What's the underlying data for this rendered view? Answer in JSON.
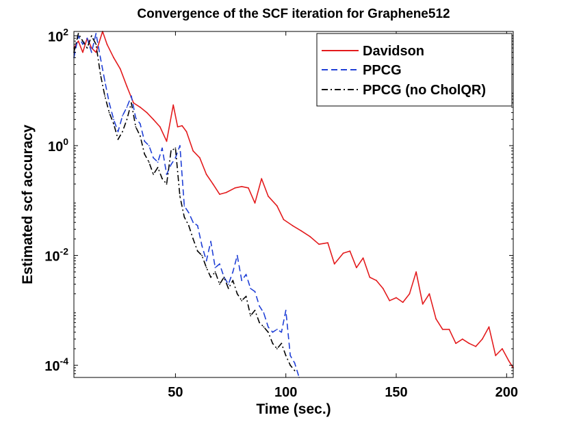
{
  "chart_data": {
    "type": "line",
    "title": "Convergence of the SCF iteration for Graphene512",
    "xlabel": "Time (sec.)",
    "ylabel": "Estimated scf accuracy",
    "xlim": [
      4,
      203
    ],
    "ylim": [
      6e-05,
      120
    ],
    "yscale": "log",
    "xticks": [
      50,
      100,
      150,
      200
    ],
    "xtick_labels": [
      "50",
      "100",
      "150",
      "200"
    ],
    "yticks": [
      {
        "value": 100,
        "base": "10",
        "exp": "2"
      },
      {
        "value": 1,
        "base": "10",
        "exp": "0"
      },
      {
        "value": 0.01,
        "base": "10",
        "exp": "-2"
      },
      {
        "value": 0.0001,
        "base": "10",
        "exp": "-4"
      }
    ],
    "grid": false,
    "legend_position": "top-right",
    "series": [
      {
        "name": "Davidson",
        "color": "#e31a1c",
        "dash": "solid",
        "x": [
          4,
          6,
          8,
          10,
          12,
          14,
          17,
          19,
          22,
          25,
          28,
          31,
          34,
          37,
          40,
          43,
          46,
          49,
          51,
          53,
          55,
          58,
          61,
          64,
          67,
          70,
          73,
          77,
          80,
          83,
          86,
          89,
          92,
          96,
          99,
          103,
          107,
          111,
          115,
          119,
          122,
          126,
          129,
          132,
          135,
          138,
          141,
          144,
          147,
          150,
          153,
          156,
          159,
          162,
          165,
          168,
          171,
          174,
          177,
          180,
          183,
          186,
          189,
          192,
          195,
          198,
          201,
          203
        ],
        "y": [
          60,
          80,
          50,
          90,
          60,
          50,
          120,
          70,
          40,
          25,
          12,
          6,
          5,
          4,
          3,
          2.2,
          1.2,
          5.5,
          2.2,
          2.3,
          1.8,
          0.8,
          0.6,
          0.3,
          0.2,
          0.13,
          0.14,
          0.17,
          0.18,
          0.17,
          0.09,
          0.25,
          0.12,
          0.08,
          0.045,
          0.035,
          0.028,
          0.022,
          0.016,
          0.017,
          0.007,
          0.011,
          0.012,
          0.006,
          0.009,
          0.004,
          0.0035,
          0.0025,
          0.0015,
          0.0017,
          0.0014,
          0.002,
          0.005,
          0.0013,
          0.002,
          0.0007,
          0.00045,
          0.00045,
          0.00025,
          0.0003,
          0.00025,
          0.00022,
          0.0003,
          0.0005,
          0.00015,
          0.0002,
          0.00012,
          9e-05
        ]
      },
      {
        "name": "PPCG",
        "color": "#1f3fd6",
        "dash": "dashed",
        "x": [
          4,
          6,
          8,
          10,
          12,
          14,
          16,
          18,
          20,
          22,
          24,
          26,
          28,
          30,
          32,
          34,
          36,
          38,
          40,
          42,
          44,
          46,
          48,
          50,
          52,
          54,
          56,
          58,
          60,
          62,
          64,
          66,
          68,
          70,
          72,
          74,
          76,
          78,
          80,
          82,
          84,
          86,
          88,
          90,
          92,
          94,
          96,
          98,
          100,
          102,
          104,
          106
        ],
        "y": [
          40,
          100,
          70,
          90,
          50,
          110,
          40,
          15,
          6,
          3,
          1.8,
          3.5,
          5,
          8,
          3.2,
          2.5,
          1.2,
          1.0,
          0.6,
          0.5,
          0.9,
          0.3,
          0.45,
          0.6,
          1.0,
          0.08,
          0.06,
          0.04,
          0.035,
          0.015,
          0.008,
          0.018,
          0.006,
          0.007,
          0.004,
          0.003,
          0.005,
          0.01,
          0.0035,
          0.0045,
          0.0025,
          0.0022,
          0.0012,
          0.0009,
          0.0005,
          0.0004,
          0.00045,
          0.0004,
          0.001,
          0.00015,
          0.00011,
          6e-05
        ]
      },
      {
        "name": "PPCG (no CholQR)",
        "color": "#000000",
        "dash": "dashdot",
        "x": [
          4,
          6,
          8,
          10,
          12,
          14,
          16,
          18,
          20,
          22,
          24,
          26,
          28,
          30,
          32,
          34,
          36,
          38,
          40,
          42,
          44,
          46,
          48,
          50,
          52,
          54,
          56,
          58,
          60,
          62,
          64,
          66,
          68,
          70,
          72,
          74,
          76,
          78,
          80,
          82,
          84,
          86,
          88,
          90,
          92,
          94,
          96,
          98,
          100,
          102,
          104
        ],
        "y": [
          50,
          110,
          80,
          60,
          100,
          70,
          20,
          8,
          4,
          2.5,
          1.3,
          1.8,
          3,
          6,
          2.2,
          1.5,
          0.7,
          0.5,
          0.3,
          0.4,
          0.25,
          0.2,
          0.8,
          0.9,
          0.12,
          0.05,
          0.035,
          0.02,
          0.012,
          0.01,
          0.006,
          0.004,
          0.005,
          0.003,
          0.004,
          0.0025,
          0.0035,
          0.002,
          0.0015,
          0.0018,
          0.0008,
          0.001,
          0.0006,
          0.0005,
          0.0004,
          0.00025,
          0.0002,
          0.00025,
          0.00015,
          0.0001,
          8e-05
        ]
      }
    ]
  }
}
